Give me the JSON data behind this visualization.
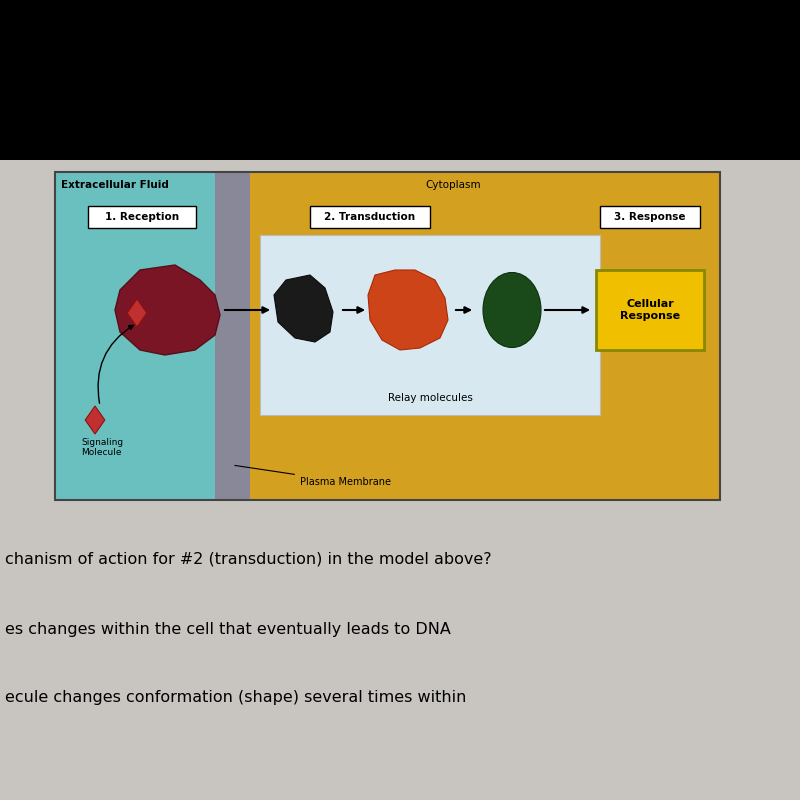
{
  "bg_top_color": "#000000",
  "bg_bottom_color": "#c8c4c0",
  "diagram": {
    "left_bg": "#6abfbf",
    "membrane_bg": "#888888",
    "right_bg": "#d4a020",
    "relay_box_color": "#d8e8f0",
    "label_extracellular": "Extracellular Fluid",
    "label_cytoplasm": "Cytoplasm",
    "label_reception": "1. Reception",
    "label_transduction": "2. Transduction",
    "label_response": "3. Response",
    "label_relay": "Relay molecules",
    "label_signaling": "Signaling\nMolecule",
    "label_plasma": "Plasma Membrane",
    "label_cellular": "Cellular\nResponse"
  },
  "question_text": "chanism of action for #2 (transduction) in the model above?",
  "answer1": "es changes within the cell that eventually leads to DNA",
  "answer2": "ecule changes conformation (shape) several times within"
}
